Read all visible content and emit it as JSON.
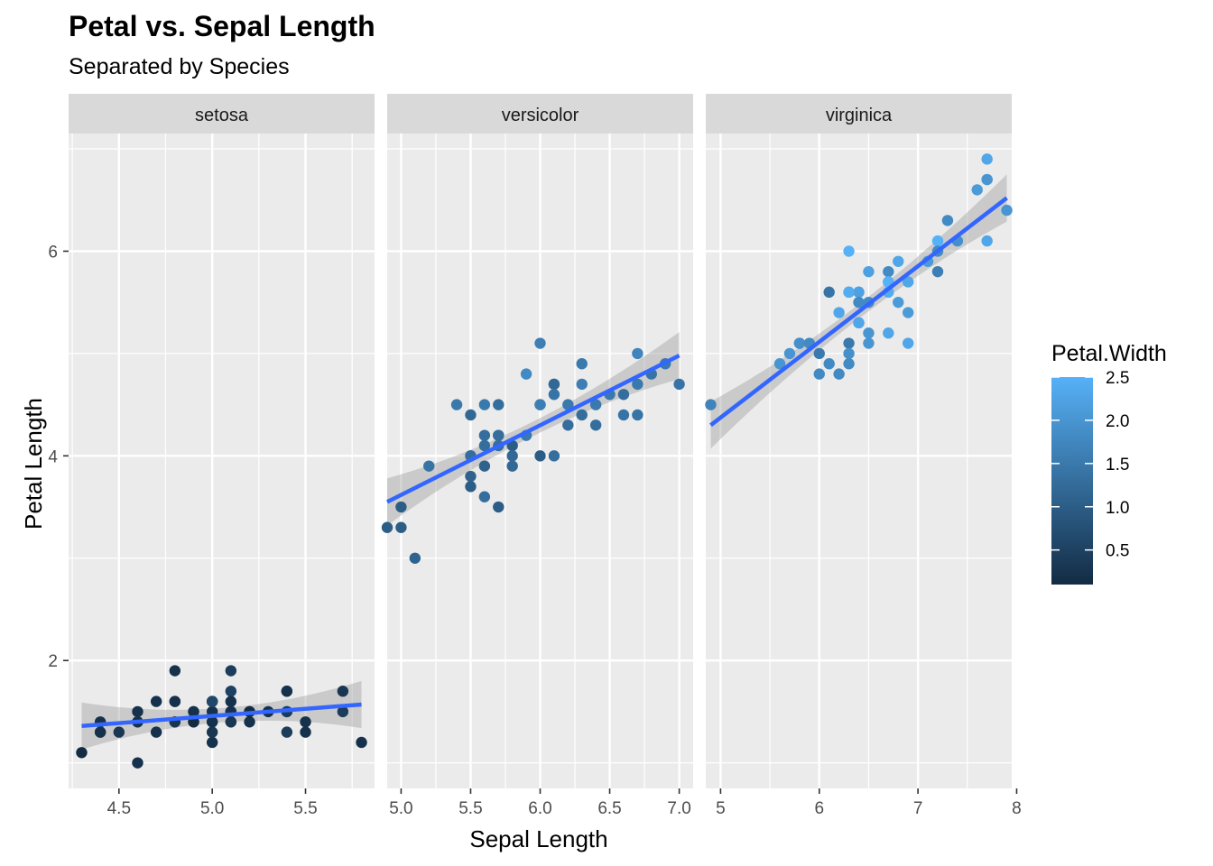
{
  "chart_data": {
    "type": "scatter",
    "title": "Petal vs. Sepal Length",
    "subtitle": "Separated by Species",
    "xlabel": "Sepal Length",
    "ylabel": "Petal Length",
    "ylim": [
      0.75,
      7.15
    ],
    "yticks": [
      2,
      4,
      6
    ],
    "grid": true,
    "legend": {
      "title": "Petal.Width",
      "position": "right",
      "range": [
        0.1,
        2.5
      ],
      "ticks": [
        0.5,
        1.0,
        1.5,
        2.0,
        2.5
      ],
      "tick_labels": [
        "0.5",
        "1.0",
        "1.5",
        "2.0",
        "2.5"
      ],
      "low_color": "#132B43",
      "high_color": "#56B1F7"
    },
    "smooth_color": "#3366FF",
    "panels": [
      {
        "name": "setosa",
        "xlim": [
          4.23,
          5.87
        ],
        "xticks": [
          4.5,
          5.0,
          5.5
        ],
        "xtick_labels": [
          "4.5",
          "5.0",
          "5.5"
        ],
        "fit": {
          "x": [
            4.3,
            5.8
          ],
          "y": [
            1.36,
            1.57
          ]
        },
        "points": [
          {
            "x": 5.1,
            "y": 1.4,
            "w": 0.2
          },
          {
            "x": 4.9,
            "y": 1.4,
            "w": 0.2
          },
          {
            "x": 4.7,
            "y": 1.3,
            "w": 0.2
          },
          {
            "x": 4.6,
            "y": 1.5,
            "w": 0.2
          },
          {
            "x": 5.0,
            "y": 1.4,
            "w": 0.2
          },
          {
            "x": 5.4,
            "y": 1.7,
            "w": 0.4
          },
          {
            "x": 4.6,
            "y": 1.4,
            "w": 0.3
          },
          {
            "x": 5.0,
            "y": 1.5,
            "w": 0.2
          },
          {
            "x": 4.4,
            "y": 1.4,
            "w": 0.2
          },
          {
            "x": 4.9,
            "y": 1.5,
            "w": 0.1
          },
          {
            "x": 5.4,
            "y": 1.5,
            "w": 0.2
          },
          {
            "x": 4.8,
            "y": 1.6,
            "w": 0.2
          },
          {
            "x": 4.8,
            "y": 1.4,
            "w": 0.1
          },
          {
            "x": 4.3,
            "y": 1.1,
            "w": 0.1
          },
          {
            "x": 5.8,
            "y": 1.2,
            "w": 0.2
          },
          {
            "x": 5.7,
            "y": 1.5,
            "w": 0.4
          },
          {
            "x": 5.4,
            "y": 1.3,
            "w": 0.4
          },
          {
            "x": 5.1,
            "y": 1.4,
            "w": 0.3
          },
          {
            "x": 5.7,
            "y": 1.7,
            "w": 0.3
          },
          {
            "x": 5.1,
            "y": 1.5,
            "w": 0.3
          },
          {
            "x": 5.4,
            "y": 1.7,
            "w": 0.2
          },
          {
            "x": 5.1,
            "y": 1.5,
            "w": 0.4
          },
          {
            "x": 4.6,
            "y": 1.0,
            "w": 0.2
          },
          {
            "x": 5.1,
            "y": 1.7,
            "w": 0.5
          },
          {
            "x": 4.8,
            "y": 1.9,
            "w": 0.2
          },
          {
            "x": 5.0,
            "y": 1.6,
            "w": 0.2
          },
          {
            "x": 5.0,
            "y": 1.6,
            "w": 0.4
          },
          {
            "x": 5.2,
            "y": 1.5,
            "w": 0.2
          },
          {
            "x": 5.2,
            "y": 1.4,
            "w": 0.2
          },
          {
            "x": 4.7,
            "y": 1.6,
            "w": 0.2
          },
          {
            "x": 4.8,
            "y": 1.6,
            "w": 0.2
          },
          {
            "x": 5.4,
            "y": 1.5,
            "w": 0.4
          },
          {
            "x": 5.2,
            "y": 1.5,
            "w": 0.1
          },
          {
            "x": 5.5,
            "y": 1.4,
            "w": 0.2
          },
          {
            "x": 4.9,
            "y": 1.5,
            "w": 0.2
          },
          {
            "x": 5.0,
            "y": 1.2,
            "w": 0.2
          },
          {
            "x": 5.5,
            "y": 1.3,
            "w": 0.2
          },
          {
            "x": 4.9,
            "y": 1.4,
            "w": 0.1
          },
          {
            "x": 4.4,
            "y": 1.3,
            "w": 0.2
          },
          {
            "x": 5.1,
            "y": 1.5,
            "w": 0.2
          },
          {
            "x": 5.0,
            "y": 1.3,
            "w": 0.3
          },
          {
            "x": 4.5,
            "y": 1.3,
            "w": 0.3
          },
          {
            "x": 4.4,
            "y": 1.3,
            "w": 0.2
          },
          {
            "x": 5.0,
            "y": 1.6,
            "w": 0.6
          },
          {
            "x": 5.1,
            "y": 1.9,
            "w": 0.4
          },
          {
            "x": 4.8,
            "y": 1.4,
            "w": 0.3
          },
          {
            "x": 5.1,
            "y": 1.6,
            "w": 0.2
          },
          {
            "x": 4.6,
            "y": 1.4,
            "w": 0.2
          },
          {
            "x": 5.3,
            "y": 1.5,
            "w": 0.2
          },
          {
            "x": 5.0,
            "y": 1.4,
            "w": 0.2
          }
        ]
      },
      {
        "name": "versicolor",
        "xlim": [
          4.9,
          7.1
        ],
        "xticks": [
          5.0,
          5.5,
          6.0,
          6.5,
          7.0
        ],
        "xtick_labels": [
          "5.0",
          "5.5",
          "6.0",
          "6.5",
          "7.0"
        ],
        "fit": {
          "x": [
            4.9,
            7.0
          ],
          "y": [
            3.55,
            4.98
          ]
        },
        "points": [
          {
            "x": 7.0,
            "y": 4.7,
            "w": 1.4
          },
          {
            "x": 6.4,
            "y": 4.5,
            "w": 1.5
          },
          {
            "x": 6.9,
            "y": 4.9,
            "w": 1.5
          },
          {
            "x": 5.5,
            "y": 4.0,
            "w": 1.3
          },
          {
            "x": 6.5,
            "y": 4.6,
            "w": 1.5
          },
          {
            "x": 5.7,
            "y": 4.5,
            "w": 1.3
          },
          {
            "x": 6.3,
            "y": 4.7,
            "w": 1.6
          },
          {
            "x": 4.9,
            "y": 3.3,
            "w": 1.0
          },
          {
            "x": 6.6,
            "y": 4.6,
            "w": 1.3
          },
          {
            "x": 5.2,
            "y": 3.9,
            "w": 1.4
          },
          {
            "x": 5.0,
            "y": 3.5,
            "w": 1.0
          },
          {
            "x": 5.9,
            "y": 4.2,
            "w": 1.5
          },
          {
            "x": 6.0,
            "y": 4.0,
            "w": 1.0
          },
          {
            "x": 6.1,
            "y": 4.7,
            "w": 1.4
          },
          {
            "x": 5.6,
            "y": 3.6,
            "w": 1.3
          },
          {
            "x": 6.7,
            "y": 4.4,
            "w": 1.4
          },
          {
            "x": 5.6,
            "y": 4.5,
            "w": 1.5
          },
          {
            "x": 5.8,
            "y": 4.1,
            "w": 1.0
          },
          {
            "x": 6.2,
            "y": 4.5,
            "w": 1.5
          },
          {
            "x": 5.6,
            "y": 3.9,
            "w": 1.1
          },
          {
            "x": 5.9,
            "y": 4.8,
            "w": 1.8
          },
          {
            "x": 6.1,
            "y": 4.0,
            "w": 1.3
          },
          {
            "x": 6.3,
            "y": 4.9,
            "w": 1.5
          },
          {
            "x": 6.1,
            "y": 4.7,
            "w": 1.2
          },
          {
            "x": 6.4,
            "y": 4.3,
            "w": 1.3
          },
          {
            "x": 6.6,
            "y": 4.4,
            "w": 1.4
          },
          {
            "x": 6.8,
            "y": 4.8,
            "w": 1.4
          },
          {
            "x": 6.7,
            "y": 5.0,
            "w": 1.7
          },
          {
            "x": 6.0,
            "y": 4.5,
            "w": 1.5
          },
          {
            "x": 5.7,
            "y": 3.5,
            "w": 1.0
          },
          {
            "x": 5.5,
            "y": 3.8,
            "w": 1.1
          },
          {
            "x": 5.5,
            "y": 3.7,
            "w": 1.0
          },
          {
            "x": 5.8,
            "y": 3.9,
            "w": 1.2
          },
          {
            "x": 6.0,
            "y": 5.1,
            "w": 1.6
          },
          {
            "x": 5.4,
            "y": 4.5,
            "w": 1.5
          },
          {
            "x": 6.0,
            "y": 4.5,
            "w": 1.6
          },
          {
            "x": 6.7,
            "y": 4.7,
            "w": 1.5
          },
          {
            "x": 6.3,
            "y": 4.4,
            "w": 1.3
          },
          {
            "x": 5.6,
            "y": 4.1,
            "w": 1.3
          },
          {
            "x": 5.5,
            "y": 4.0,
            "w": 1.3
          },
          {
            "x": 5.5,
            "y": 4.4,
            "w": 1.2
          },
          {
            "x": 6.1,
            "y": 4.6,
            "w": 1.4
          },
          {
            "x": 5.8,
            "y": 4.0,
            "w": 1.2
          },
          {
            "x": 5.0,
            "y": 3.3,
            "w": 1.0
          },
          {
            "x": 5.6,
            "y": 4.2,
            "w": 1.3
          },
          {
            "x": 5.7,
            "y": 4.2,
            "w": 1.2
          },
          {
            "x": 5.7,
            "y": 4.2,
            "w": 1.3
          },
          {
            "x": 6.2,
            "y": 4.3,
            "w": 1.3
          },
          {
            "x": 5.1,
            "y": 3.0,
            "w": 1.1
          },
          {
            "x": 5.7,
            "y": 4.1,
            "w": 1.3
          }
        ]
      },
      {
        "name": "virginica",
        "xlim": [
          4.85,
          7.95
        ],
        "xticks": [
          5,
          6,
          7,
          8
        ],
        "xtick_labels": [
          "5",
          "6",
          "7",
          "8"
        ],
        "fit": {
          "x": [
            4.9,
            7.9
          ],
          "y": [
            4.3,
            6.52
          ]
        },
        "points": [
          {
            "x": 6.3,
            "y": 6.0,
            "w": 2.5
          },
          {
            "x": 5.8,
            "y": 5.1,
            "w": 1.9
          },
          {
            "x": 7.1,
            "y": 5.9,
            "w": 2.1
          },
          {
            "x": 6.3,
            "y": 5.6,
            "w": 1.8
          },
          {
            "x": 6.5,
            "y": 5.8,
            "w": 2.2
          },
          {
            "x": 7.6,
            "y": 6.6,
            "w": 2.1
          },
          {
            "x": 4.9,
            "y": 4.5,
            "w": 1.7
          },
          {
            "x": 7.3,
            "y": 6.3,
            "w": 1.8
          },
          {
            "x": 6.7,
            "y": 5.8,
            "w": 1.8
          },
          {
            "x": 7.2,
            "y": 6.1,
            "w": 2.5
          },
          {
            "x": 6.5,
            "y": 5.1,
            "w": 2.0
          },
          {
            "x": 6.4,
            "y": 5.3,
            "w": 1.9
          },
          {
            "x": 6.8,
            "y": 5.5,
            "w": 2.1
          },
          {
            "x": 5.7,
            "y": 5.0,
            "w": 2.0
          },
          {
            "x": 5.8,
            "y": 5.1,
            "w": 2.4
          },
          {
            "x": 6.4,
            "y": 5.3,
            "w": 2.3
          },
          {
            "x": 6.5,
            "y": 5.5,
            "w": 1.8
          },
          {
            "x": 7.7,
            "y": 6.7,
            "w": 2.2
          },
          {
            "x": 7.7,
            "y": 6.9,
            "w": 2.3
          },
          {
            "x": 6.0,
            "y": 5.0,
            "w": 1.5
          },
          {
            "x": 6.9,
            "y": 5.7,
            "w": 2.3
          },
          {
            "x": 5.6,
            "y": 4.9,
            "w": 2.0
          },
          {
            "x": 7.7,
            "y": 6.7,
            "w": 2.0
          },
          {
            "x": 6.3,
            "y": 4.9,
            "w": 1.8
          },
          {
            "x": 6.7,
            "y": 5.7,
            "w": 2.1
          },
          {
            "x": 7.2,
            "y": 6.0,
            "w": 1.8
          },
          {
            "x": 6.2,
            "y": 4.8,
            "w": 1.8
          },
          {
            "x": 6.1,
            "y": 4.9,
            "w": 1.8
          },
          {
            "x": 6.4,
            "y": 5.6,
            "w": 2.1
          },
          {
            "x": 7.2,
            "y": 5.8,
            "w": 1.6
          },
          {
            "x": 7.4,
            "y": 6.1,
            "w": 1.9
          },
          {
            "x": 7.9,
            "y": 6.4,
            "w": 2.0
          },
          {
            "x": 6.4,
            "y": 5.6,
            "w": 2.2
          },
          {
            "x": 6.3,
            "y": 5.1,
            "w": 1.5
          },
          {
            "x": 6.1,
            "y": 5.6,
            "w": 1.4
          },
          {
            "x": 7.7,
            "y": 6.1,
            "w": 2.3
          },
          {
            "x": 6.3,
            "y": 5.6,
            "w": 2.4
          },
          {
            "x": 6.4,
            "y": 5.5,
            "w": 1.8
          },
          {
            "x": 6.0,
            "y": 4.8,
            "w": 1.8
          },
          {
            "x": 6.9,
            "y": 5.4,
            "w": 2.1
          },
          {
            "x": 6.7,
            "y": 5.6,
            "w": 2.4
          },
          {
            "x": 6.9,
            "y": 5.1,
            "w": 2.3
          },
          {
            "x": 5.8,
            "y": 5.1,
            "w": 1.9
          },
          {
            "x": 6.8,
            "y": 5.9,
            "w": 2.3
          },
          {
            "x": 6.7,
            "y": 5.7,
            "w": 2.5
          },
          {
            "x": 6.7,
            "y": 5.2,
            "w": 2.3
          },
          {
            "x": 6.3,
            "y": 5.0,
            "w": 1.9
          },
          {
            "x": 6.5,
            "y": 5.2,
            "w": 2.0
          },
          {
            "x": 6.2,
            "y": 5.4,
            "w": 2.3
          },
          {
            "x": 5.9,
            "y": 5.1,
            "w": 1.8
          }
        ]
      }
    ]
  }
}
